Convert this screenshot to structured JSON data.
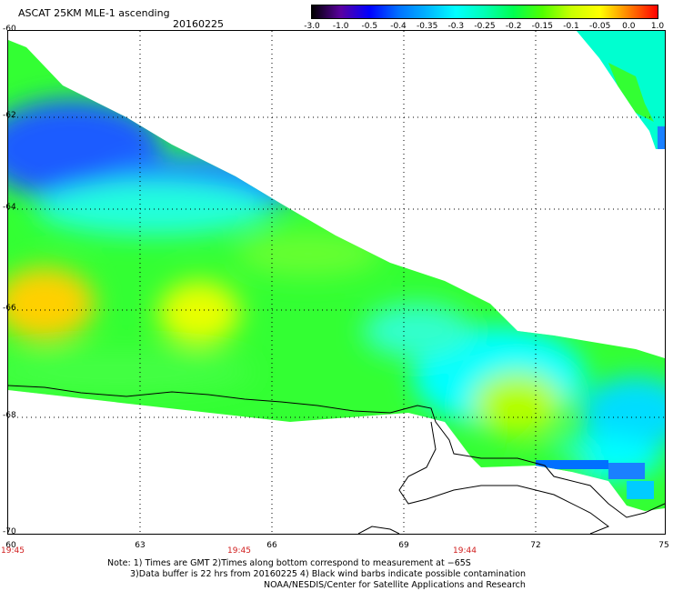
{
  "header": {
    "title": "ASCAT 25KM MLE-1 ascending",
    "date": "20160225"
  },
  "color_scale": {
    "labels": [
      "-3.0",
      "-1.0",
      "-0.5",
      "-0.4",
      "-0.35",
      "-0.3",
      "-0.25",
      "-0.2",
      "-0.15",
      "-0.1",
      "-0.05",
      "0.0",
      "1.0"
    ],
    "colors": [
      "#000000",
      "#5a00a0",
      "#0000ff",
      "#0070ff",
      "#00b4ff",
      "#00ffff",
      "#00ffb4",
      "#00ff50",
      "#50ff00",
      "#c8ff00",
      "#ffff00",
      "#ff8000",
      "#ff0000"
    ]
  },
  "axes": {
    "lat_labels": [
      "-60",
      "-62",
      "-64",
      "-66",
      "-68",
      "-70"
    ],
    "lon_labels": [
      "60",
      "63",
      "66",
      "69",
      "72",
      "75"
    ],
    "time_labels": [
      "19:45",
      "19:45",
      "19:44"
    ]
  },
  "footer": {
    "line1": "Note: 1) Times are GMT 2)Times along bottom correspond to measurement at −65S",
    "line2": "3)Data buffer is 22 hrs from 20160225 4) Black wind barbs indicate possible contamination",
    "line3": "NOAA/NESDIS/Center for Satellite Applications and Research"
  }
}
